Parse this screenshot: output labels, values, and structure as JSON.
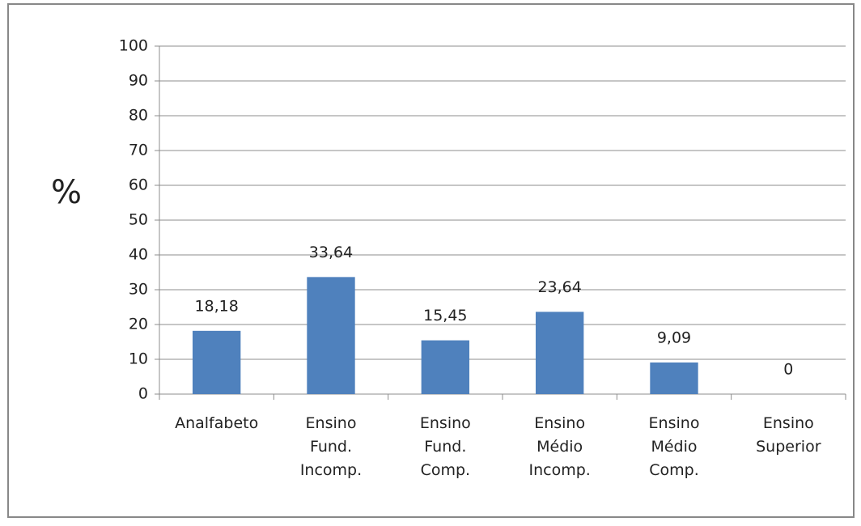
{
  "chart_data": {
    "type": "bar",
    "y_label": "%",
    "categories": [
      "Analfabeto",
      "Ensino\nFund.\nIncomp.",
      "Ensino\nFund.\nComp.",
      "Ensino\nMédio\nIncomp.",
      "Ensino\nMédio\nComp.",
      "Ensino\nSuperior"
    ],
    "values": [
      18.18,
      33.64,
      15.45,
      23.64,
      9.09,
      0
    ],
    "value_labels": [
      "18,18",
      "33,64",
      "15,45",
      "23,64",
      "9,09",
      "0"
    ],
    "color": "#4f81bd",
    "ylim": [
      0,
      100
    ],
    "yticks": [
      0,
      10,
      20,
      30,
      40,
      50,
      60,
      70,
      80,
      90,
      100
    ],
    "grid": true
  }
}
